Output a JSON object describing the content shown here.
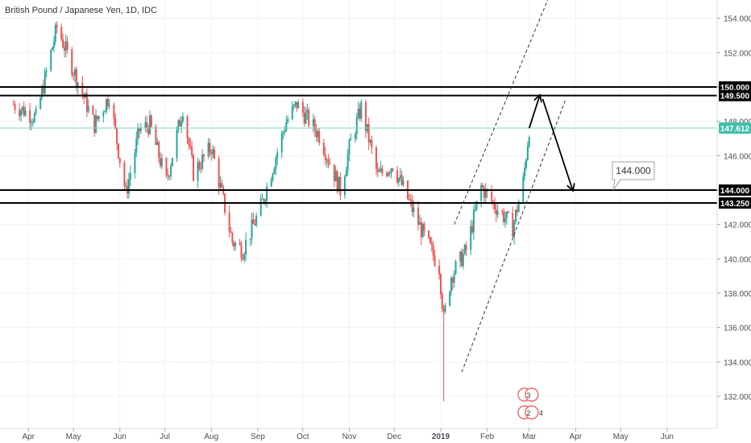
{
  "chart_data": {
    "type": "candlestick",
    "title": "British Pound / Japanese Yen, 1D, IDC",
    "y_axis_ticks": [
      "154.000",
      "152.000",
      "150.000",
      "148.000",
      "146.000",
      "144.000",
      "142.000",
      "140.000",
      "138.000",
      "136.000",
      "134.000",
      "132.000"
    ],
    "y_tick_values": [
      154,
      152,
      150,
      148,
      146,
      144,
      142,
      140,
      138,
      136,
      134,
      132
    ],
    "x_axis_ticks": [
      "Apr",
      "May",
      "Jun",
      "Jul",
      "Aug",
      "Sep",
      "Oct",
      "Nov",
      "Dec",
      "2019",
      "Feb",
      "Mar",
      "Apr",
      "May",
      "Jun"
    ],
    "ylim": [
      130.9,
      155.4
    ],
    "current_price": {
      "label": "147.612",
      "value": 147.612
    },
    "horizontal_levels": [
      {
        "label": "150.000",
        "value": 150.0
      },
      {
        "label": "149.500",
        "value": 149.5
      },
      {
        "label": "144.000",
        "value": 144.0
      },
      {
        "label": "143.250",
        "value": 143.25
      }
    ],
    "target_callout": {
      "label": "144.000",
      "value": 144.0
    },
    "price_path_keypoints": [
      {
        "date": "2018-03-22",
        "price": 149.0
      },
      {
        "date": "2018-04-06",
        "price": 148.2
      },
      {
        "date": "2018-04-20",
        "price": 153.5
      },
      {
        "date": "2018-05-01",
        "price": 151.0
      },
      {
        "date": "2018-05-15",
        "price": 147.8
      },
      {
        "date": "2018-05-25",
        "price": 149.5
      },
      {
        "date": "2018-06-01",
        "price": 145.8
      },
      {
        "date": "2018-06-05",
        "price": 143.8
      },
      {
        "date": "2018-06-14",
        "price": 147.5
      },
      {
        "date": "2018-06-21",
        "price": 147.8
      },
      {
        "date": "2018-07-02",
        "price": 144.5
      },
      {
        "date": "2018-07-13",
        "price": 148.8
      },
      {
        "date": "2018-07-20",
        "price": 145.0
      },
      {
        "date": "2018-08-01",
        "price": 146.5
      },
      {
        "date": "2018-08-15",
        "price": 141.0
      },
      {
        "date": "2018-08-22",
        "price": 140.5
      },
      {
        "date": "2018-09-03",
        "price": 143.0
      },
      {
        "date": "2018-09-20",
        "price": 148.0
      },
      {
        "date": "2018-09-27",
        "price": 149.0
      },
      {
        "date": "2018-10-12",
        "price": 147.2
      },
      {
        "date": "2018-10-26",
        "price": 144.0
      },
      {
        "date": "2018-11-02",
        "price": 146.8
      },
      {
        "date": "2018-11-09",
        "price": 148.8
      },
      {
        "date": "2018-11-20",
        "price": 144.8
      },
      {
        "date": "2018-11-30",
        "price": 145.5
      },
      {
        "date": "2018-12-10",
        "price": 143.5
      },
      {
        "date": "2018-12-20",
        "price": 141.5
      },
      {
        "date": "2018-12-31",
        "price": 139.5
      },
      {
        "date": "2019-01-03",
        "price": 136.5
      },
      {
        "date": "2019-01-08",
        "price": 139.0
      },
      {
        "date": "2019-01-18",
        "price": 140.5
      },
      {
        "date": "2019-01-28",
        "price": 144.2
      },
      {
        "date": "2019-02-05",
        "price": 143.2
      },
      {
        "date": "2019-02-12",
        "price": 142.5
      },
      {
        "date": "2019-02-18",
        "price": 141.8
      },
      {
        "date": "2019-02-25",
        "price": 144.5
      },
      {
        "date": "2019-03-01",
        "price": 147.6
      }
    ],
    "extreme_low": {
      "date": "2019-01-03",
      "price": 131.7
    },
    "channel_lines": [
      {
        "from": {
          "date": "2019-01-15",
          "price": 133.4
        },
        "to": {
          "date": "2019-03-25",
          "price": 149.2
        }
      },
      {
        "from": {
          "date": "2019-01-10",
          "price": 142.0
        },
        "to": {
          "date": "2019-03-14",
          "price": 155.2
        }
      }
    ],
    "projection_arrows": [
      {
        "from": {
          "date": "2019-03-01",
          "price": 147.6
        },
        "to": {
          "date": "2019-03-08",
          "price": 149.5
        }
      },
      {
        "from": {
          "date": "2019-03-10",
          "price": 149.3
        },
        "to": {
          "date": "2019-03-30",
          "price": 144.0
        }
      }
    ],
    "event_markers": [
      {
        "date": "2019-02-28",
        "label": "3",
        "row": "upper"
      },
      {
        "date": "2019-02-28",
        "label": "2",
        "extra": "4",
        "row": "lower"
      }
    ],
    "colors": {
      "up": "#26a69a",
      "down": "#ef5350",
      "current_line": "#7fd6c9",
      "current_badge": "#3fbfae",
      "level_line": "#000000",
      "grid": "#f0f3f5"
    }
  }
}
